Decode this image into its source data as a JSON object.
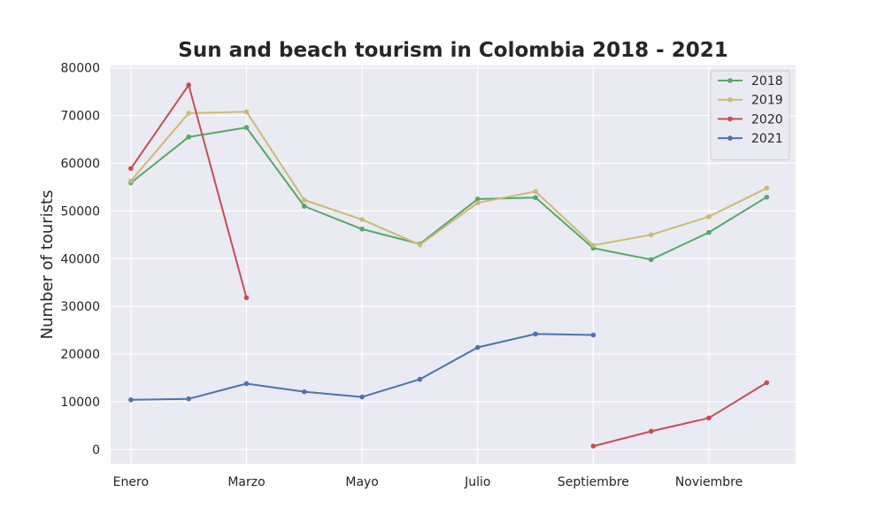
{
  "chart_data": {
    "type": "line",
    "title": "Sun and beach tourism in Colombia 2018 - 2021",
    "ylabel": "Number of tourists",
    "xlabel": "",
    "x_tick_labels": [
      "Enero",
      "Marzo",
      "Mayo",
      "Julio",
      "Septiembre",
      "Noviembre"
    ],
    "x_tick_positions": [
      0,
      2,
      4,
      6,
      8,
      10
    ],
    "y_ticks": [
      0,
      10000,
      20000,
      30000,
      40000,
      50000,
      60000,
      70000,
      80000
    ],
    "xlim": [
      -0.35,
      11.5
    ],
    "ylim": [
      -3000,
      80500
    ],
    "grid": true,
    "legend_position": "top-right",
    "series": [
      {
        "name": "2018",
        "color": "#55a868",
        "x": [
          0,
          1,
          2,
          3,
          4,
          5,
          6,
          7,
          8,
          9,
          10,
          11
        ],
        "values": [
          55900,
          65500,
          67500,
          51000,
          46200,
          43100,
          52500,
          52800,
          42200,
          39800,
          45500,
          52900
        ]
      },
      {
        "name": "2019",
        "color": "#ccb974",
        "x": [
          0,
          1,
          2,
          3,
          4,
          5,
          6,
          7,
          8,
          9,
          10,
          11
        ],
        "values": [
          56300,
          70500,
          70800,
          52300,
          48200,
          42900,
          51700,
          54100,
          42800,
          45000,
          48800,
          54800
        ]
      },
      {
        "name": "2020",
        "color": "#c44e52",
        "x": [
          0,
          1,
          2,
          8,
          9,
          10,
          11
        ],
        "values": [
          58900,
          76400,
          31800,
          700,
          3800,
          6600,
          14000
        ],
        "segments": [
          [
            0,
            1,
            2
          ],
          [
            3,
            4,
            5,
            6
          ]
        ]
      },
      {
        "name": "2021",
        "color": "#4c72b0",
        "x": [
          0,
          1,
          2,
          3,
          4,
          5,
          6,
          7,
          8
        ],
        "values": [
          10400,
          10600,
          13800,
          12100,
          11000,
          14700,
          21400,
          24200,
          24000
        ]
      }
    ]
  }
}
